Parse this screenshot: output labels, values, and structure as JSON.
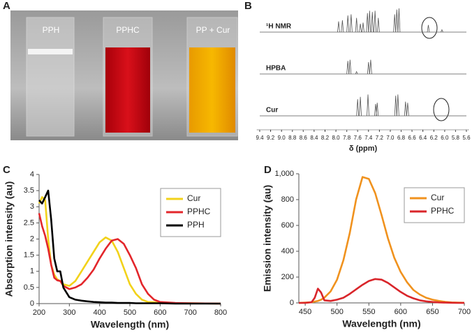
{
  "photo": {
    "panel": "A",
    "labels": [
      "PPH",
      "PPHC",
      "PP + Cur"
    ]
  },
  "chart_data": [
    {
      "type": "spectrum",
      "panel": "B",
      "xlabel": "δ (ppm)",
      "xlim": [
        9.4,
        5.6
      ],
      "xticks": [
        9.4,
        9.2,
        {
          "value": 9,
          "label": "9.0"
        },
        8.8,
        8.6,
        8.4,
        8.2,
        {
          "value": 8,
          "label": "8.0"
        },
        7.8,
        7.6,
        7.4,
        7.2,
        {
          "value": 7,
          "label": "7.0"
        },
        6.8,
        6.6,
        6.4,
        6.2,
        {
          "value": 6,
          "label": "6.0"
        },
        5.8,
        5.6
      ],
      "series": [
        {
          "name": "¹H NMR",
          "color": "#555555",
          "x": [
            7.95,
            7.88,
            7.78,
            7.72,
            7.62,
            7.55,
            7.5,
            7.42,
            7.38,
            7.33,
            7.28,
            7.22,
            6.92,
            6.88,
            6.84,
            6.3,
            6.05
          ],
          "values": [
            0.45,
            0.5,
            0.7,
            0.75,
            0.6,
            0.35,
            0.4,
            0.8,
            0.9,
            0.85,
            0.9,
            0.6,
            0.75,
            0.95,
            1.0,
            0.3,
            0.1
          ]
        },
        {
          "name": "HPBA",
          "color": "#555555",
          "x": [
            7.78,
            7.74,
            7.62,
            7.4,
            7.36
          ],
          "values": [
            0.55,
            0.6,
            0.1,
            0.5,
            0.6
          ]
        },
        {
          "name": "Cur",
          "color": "#555555",
          "x": [
            7.6,
            7.55,
            7.41,
            7.27,
            7.24,
            6.9,
            6.86,
            6.72,
            6.68
          ],
          "values": [
            0.7,
            0.8,
            0.9,
            0.5,
            0.55,
            0.85,
            0.9,
            0.6,
            0.55
          ]
        }
      ]
    },
    {
      "type": "line",
      "panel": "C",
      "xlabel": "Wavelength (nm)",
      "ylabel": "Absorption intensity (au)",
      "x": [
        200,
        210,
        220,
        230,
        240,
        250,
        260,
        270,
        280,
        300,
        320,
        340,
        360,
        380,
        400,
        420,
        440,
        460,
        480,
        500,
        520,
        540,
        560,
        580,
        600,
        650,
        700,
        800
      ],
      "xlim": [
        200,
        800
      ],
      "xticks": [
        200,
        300,
        400,
        500,
        600,
        700,
        800
      ],
      "ylim": [
        0,
        4
      ],
      "yticks": [
        0,
        0.5,
        1,
        1.5,
        2,
        2.5,
        3,
        3.5,
        4
      ],
      "legend": "upper right",
      "series": [
        {
          "name": "Cur",
          "color": "#f2d21a",
          "values": [
            3.1,
            3.3,
            3.2,
            2.0,
            1.2,
            0.9,
            0.75,
            0.7,
            0.6,
            0.55,
            0.7,
            1.0,
            1.3,
            1.6,
            1.9,
            2.05,
            1.95,
            1.6,
            1.1,
            0.6,
            0.3,
            0.12,
            0.05,
            0.04,
            0.02,
            0.01,
            0.01,
            0
          ]
        },
        {
          "name": "PPHC",
          "color": "#e3262b",
          "values": [
            2.8,
            2.4,
            2.1,
            1.7,
            1.2,
            0.8,
            0.72,
            0.7,
            0.55,
            0.45,
            0.5,
            0.6,
            0.8,
            1.05,
            1.4,
            1.7,
            1.95,
            2.0,
            1.85,
            1.5,
            1.1,
            0.6,
            0.3,
            0.12,
            0.05,
            0.02,
            0.01,
            0
          ]
        },
        {
          "name": "PPH",
          "color": "#000000",
          "values": [
            3.2,
            3.1,
            3.3,
            3.5,
            2.6,
            1.4,
            1.0,
            1.0,
            0.5,
            0.2,
            0.12,
            0.09,
            0.07,
            0.05,
            0.04,
            0.03,
            0.03,
            0.02,
            0.02,
            0.02,
            0.01,
            0.01,
            0.01,
            0.01,
            0.01,
            0,
            0,
            0
          ]
        }
      ]
    },
    {
      "type": "line",
      "panel": "D",
      "xlabel": "Wavelength (nm)",
      "ylabel": "Emission intensity (au)",
      "x": [
        440,
        450,
        460,
        465,
        470,
        475,
        480,
        490,
        500,
        510,
        520,
        530,
        540,
        550,
        560,
        570,
        580,
        590,
        600,
        610,
        620,
        630,
        640,
        650,
        660,
        670,
        680,
        690,
        700
      ],
      "xlim": [
        440,
        700
      ],
      "xticks": [
        450,
        500,
        550,
        600,
        650,
        700
      ],
      "ylim": [
        0,
        1000
      ],
      "yticks": [
        0,
        200,
        400,
        600,
        800,
        {
          "value": 1000,
          "label": "1,000"
        }
      ],
      "legend": "upper right",
      "series": [
        {
          "name": "Cur",
          "color": "#f0921e",
          "values": [
            0,
            2,
            5,
            10,
            15,
            25,
            40,
            90,
            180,
            330,
            540,
            800,
            975,
            960,
            850,
            680,
            500,
            350,
            240,
            160,
            100,
            65,
            40,
            25,
            15,
            8,
            4,
            2,
            1
          ]
        },
        {
          "name": "PPHC",
          "color": "#d9252a",
          "values": [
            0,
            0,
            5,
            40,
            110,
            80,
            20,
            15,
            25,
            40,
            70,
            105,
            140,
            170,
            185,
            180,
            155,
            120,
            85,
            55,
            35,
            20,
            12,
            7,
            4,
            2,
            1,
            0,
            0
          ]
        }
      ]
    }
  ]
}
